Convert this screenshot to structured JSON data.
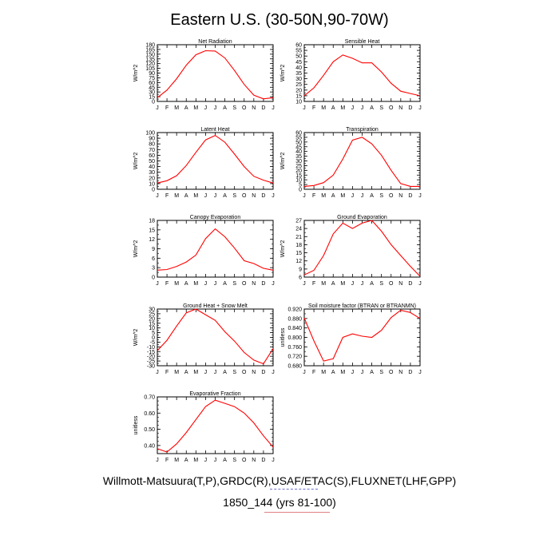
{
  "title": "Eastern U.S. (30-50N,90-70W)",
  "source": "Willmott-Matsuura(T,P),GRDC(R),USAF/ETAC(S),FLUXNET(LHF,GPP)",
  "case": "1850_144 (yrs 81-100)",
  "line_color": "#ff0000",
  "months": [
    "J",
    "F",
    "M",
    "A",
    "M",
    "J",
    "J",
    "A",
    "S",
    "O",
    "N",
    "D",
    "J"
  ],
  "chart_data": [
    {
      "type": "line",
      "title": "Net Radiation",
      "ylabel": "W/m^2",
      "ylim": [
        0,
        180
      ],
      "yticks": [
        "0",
        "15",
        "30",
        "45",
        "60",
        "75",
        "90",
        "105",
        "120",
        "135",
        "150",
        "165",
        "180"
      ],
      "yticks_step": 15,
      "values": [
        12,
        36,
        72,
        115,
        148,
        161,
        160,
        138,
        98,
        54,
        20,
        8,
        12
      ]
    },
    {
      "type": "line",
      "title": "Sensible Heat",
      "ylabel": "W/m^2",
      "ylim": [
        10,
        60
      ],
      "yticks": [
        "10",
        "15",
        "20",
        "25",
        "30",
        "35",
        "40",
        "45",
        "50",
        "55",
        "60"
      ],
      "yticks_step": 5,
      "values": [
        15,
        22,
        33,
        45,
        51,
        48,
        44,
        44,
        36,
        26,
        19,
        17,
        15
      ]
    },
    {
      "type": "line",
      "title": "Latent Heat",
      "ylabel": "W/m^2",
      "ylim": [
        0,
        100
      ],
      "yticks": [
        "0",
        "10",
        "20",
        "30",
        "40",
        "50",
        "60",
        "70",
        "80",
        "90",
        "100"
      ],
      "yticks_step": 10,
      "values": [
        11,
        15,
        24,
        42,
        65,
        87,
        95,
        83,
        62,
        40,
        23,
        16,
        11
      ]
    },
    {
      "type": "line",
      "title": "Transpiration",
      "ylabel": "W/m^2",
      "ylim": [
        0,
        60
      ],
      "yticks": [
        "0",
        "5",
        "10",
        "15",
        "20",
        "25",
        "30",
        "35",
        "40",
        "45",
        "50",
        "55",
        "60"
      ],
      "yticks_step": 5,
      "values": [
        3,
        4,
        7,
        15,
        32,
        52,
        55,
        48,
        36,
        20,
        6,
        3,
        3
      ]
    },
    {
      "type": "line",
      "title": "Canopy Evaporation",
      "ylabel": "W/m^2",
      "ylim": [
        0,
        18
      ],
      "yticks": [
        "0",
        "3",
        "6",
        "9",
        "12",
        "15",
        "18"
      ],
      "yticks_step": 3,
      "values": [
        2.2,
        2.4,
        3.4,
        4.8,
        7,
        12.2,
        15.3,
        12.8,
        9.2,
        5.2,
        4.3,
        2.8,
        2.2
      ]
    },
    {
      "type": "line",
      "title": "Ground Evaporation",
      "ylabel": "W/m^2",
      "ylim": [
        6,
        27
      ],
      "yticks": [
        "6",
        "9",
        "12",
        "15",
        "18",
        "21",
        "24",
        "27"
      ],
      "yticks_step": 3,
      "values": [
        6.8,
        8.5,
        14,
        22,
        26,
        24,
        26,
        27,
        23,
        18,
        14,
        10,
        6.3
      ]
    },
    {
      "type": "line",
      "title": "Ground Heat + Snow Melt",
      "ylabel": "W/m^2",
      "ylim": [
        -30,
        30
      ],
      "yticks": [
        "-30",
        "-25",
        "-20",
        "-15",
        "-10",
        "-5",
        "0",
        "5",
        "10",
        "15",
        "20",
        "25",
        "30"
      ],
      "yticks_step": 5,
      "values": [
        -14,
        -3,
        12,
        26,
        30,
        24,
        18,
        6,
        -4,
        -16,
        -24,
        -28,
        -12
      ]
    },
    {
      "type": "line",
      "title": "Soil moisture factor (BTRAN or BTRANMN)",
      "ylabel": "unitless",
      "ylim": [
        0.68,
        0.92
      ],
      "yticks": [
        "0.680",
        "0.720",
        "0.760",
        "0.800",
        "0.840",
        "0.880",
        "0.920"
      ],
      "yticks_step": 0.04,
      "values": [
        0.882,
        0.785,
        0.7,
        0.71,
        0.8,
        0.815,
        0.805,
        0.8,
        0.83,
        0.884,
        0.915,
        0.905,
        0.88
      ]
    },
    {
      "type": "line",
      "title": "Evaporative Fraction",
      "ylabel": "unitless",
      "ylim": [
        0.35,
        0.7
      ],
      "yticks": [
        "0.40",
        "0.50",
        "0.60",
        "0.70"
      ],
      "yticks_step": 0.05,
      "values": [
        0.38,
        0.36,
        0.41,
        0.48,
        0.56,
        0.64,
        0.68,
        0.66,
        0.64,
        0.6,
        0.54,
        0.46,
        0.39
      ]
    }
  ]
}
